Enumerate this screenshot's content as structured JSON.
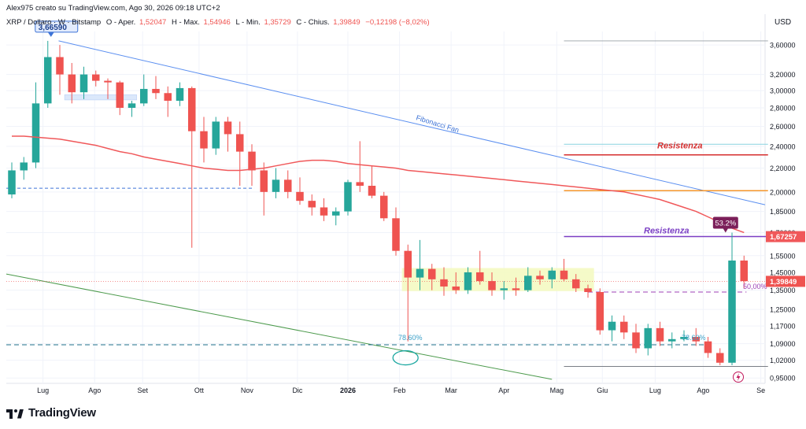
{
  "header": {
    "author_line": "Alex975 creato su TradingView.com, Ago 30, 2026 09:18 UTC+2",
    "symbol_line": "XRP / Dollaro · W · Bitstamp",
    "open_label": "O - Aper.",
    "open_value": "1,52047",
    "high_label": "H - Max.",
    "high_value": "1,54946",
    "low_label": "L - Min.",
    "low_value": "1,35729",
    "close_label": "C - Chius.",
    "close_value": "1,39849",
    "change_value": "−0,12198 (−8,02%)"
  },
  "footer": {
    "brand": "TradingView"
  },
  "colors": {
    "up": "#26a69a",
    "down": "#ef5350",
    "ma": "#f0585a",
    "grid": "#f0f3fa",
    "fib_fan": "#5b8ff0",
    "green_line": "#4c9a4c",
    "resistance_red": "#d62f2f",
    "resistance_purple": "#7b3fc4",
    "orange": "#f5962a",
    "range_box": "#f4f9c2"
  },
  "chart_data": {
    "type": "candlestick",
    "currency": "USD",
    "y_scale": "log",
    "ylim": [
      0.93,
      3.8
    ],
    "y_ticks": [
      "3,60000",
      "3,20000",
      "3,00000",
      "2,80000",
      "2,60000",
      "2,40000",
      "2,20000",
      "2,00000",
      "1,85000",
      "1,70000",
      "1,55000",
      "1,45000",
      "1,35000",
      "1,25000",
      "1,17000",
      "1,09000",
      "1,02000",
      "0,95000"
    ],
    "x_labels": [
      "Lug",
      "Ago",
      "Set",
      "Ott",
      "Nov",
      "Dic",
      "2026",
      "Feb",
      "Mar",
      "Apr",
      "Mag",
      "Giu",
      "Lug",
      "Ago",
      "Se"
    ],
    "candles": [
      {
        "o": 1.98,
        "h": 2.25,
        "l": 1.95,
        "c": 2.18
      },
      {
        "o": 2.18,
        "h": 2.3,
        "l": 2.1,
        "c": 2.25
      },
      {
        "o": 2.25,
        "h": 3.1,
        "l": 2.2,
        "c": 2.85
      },
      {
        "o": 2.85,
        "h": 3.66,
        "l": 2.8,
        "c": 3.43
      },
      {
        "o": 3.43,
        "h": 3.6,
        "l": 2.95,
        "c": 3.2
      },
      {
        "o": 3.2,
        "h": 3.35,
        "l": 2.85,
        "c": 2.98
      },
      {
        "o": 2.98,
        "h": 3.3,
        "l": 2.9,
        "c": 3.2
      },
      {
        "o": 3.2,
        "h": 3.25,
        "l": 3.05,
        "c": 3.12
      },
      {
        "o": 3.12,
        "h": 3.15,
        "l": 2.9,
        "c": 3.1
      },
      {
        "o": 3.1,
        "h": 3.12,
        "l": 2.72,
        "c": 2.8
      },
      {
        "o": 2.8,
        "h": 2.88,
        "l": 2.7,
        "c": 2.85
      },
      {
        "o": 2.85,
        "h": 3.2,
        "l": 2.82,
        "c": 3.02
      },
      {
        "o": 3.02,
        "h": 3.18,
        "l": 2.9,
        "c": 2.97
      },
      {
        "o": 2.97,
        "h": 3.05,
        "l": 2.7,
        "c": 2.88
      },
      {
        "o": 2.88,
        "h": 3.1,
        "l": 2.82,
        "c": 3.03
      },
      {
        "o": 3.03,
        "h": 3.05,
        "l": 1.6,
        "c": 2.55
      },
      {
        "o": 2.55,
        "h": 2.7,
        "l": 2.25,
        "c": 2.38
      },
      {
        "o": 2.38,
        "h": 2.7,
        "l": 2.32,
        "c": 2.65
      },
      {
        "o": 2.65,
        "h": 2.7,
        "l": 2.35,
        "c": 2.52
      },
      {
        "o": 2.52,
        "h": 2.65,
        "l": 2.05,
        "c": 2.35
      },
      {
        "o": 2.35,
        "h": 2.42,
        "l": 2.05,
        "c": 2.18
      },
      {
        "o": 2.18,
        "h": 2.25,
        "l": 1.82,
        "c": 2.0
      },
      {
        "o": 2.0,
        "h": 2.2,
        "l": 1.95,
        "c": 2.1
      },
      {
        "o": 2.1,
        "h": 2.18,
        "l": 1.95,
        "c": 2.0
      },
      {
        "o": 2.0,
        "h": 2.12,
        "l": 1.9,
        "c": 1.93
      },
      {
        "o": 1.93,
        "h": 1.98,
        "l": 1.82,
        "c": 1.88
      },
      {
        "o": 1.88,
        "h": 1.95,
        "l": 1.78,
        "c": 1.82
      },
      {
        "o": 1.82,
        "h": 1.88,
        "l": 1.75,
        "c": 1.85
      },
      {
        "o": 1.85,
        "h": 2.1,
        "l": 1.82,
        "c": 2.08
      },
      {
        "o": 2.08,
        "h": 2.45,
        "l": 2.0,
        "c": 2.05
      },
      {
        "o": 2.05,
        "h": 2.22,
        "l": 1.95,
        "c": 1.97
      },
      {
        "o": 1.97,
        "h": 2.0,
        "l": 1.78,
        "c": 1.8
      },
      {
        "o": 1.8,
        "h": 1.88,
        "l": 1.55,
        "c": 1.58
      },
      {
        "o": 1.58,
        "h": 1.62,
        "l": 1.1,
        "c": 1.42
      },
      {
        "o": 1.42,
        "h": 1.65,
        "l": 1.35,
        "c": 1.47
      },
      {
        "o": 1.47,
        "h": 1.5,
        "l": 1.35,
        "c": 1.41
      },
      {
        "o": 1.41,
        "h": 1.48,
        "l": 1.32,
        "c": 1.37
      },
      {
        "o": 1.37,
        "h": 1.45,
        "l": 1.33,
        "c": 1.35
      },
      {
        "o": 1.35,
        "h": 1.48,
        "l": 1.33,
        "c": 1.45
      },
      {
        "o": 1.45,
        "h": 1.58,
        "l": 1.38,
        "c": 1.4
      },
      {
        "o": 1.4,
        "h": 1.45,
        "l": 1.32,
        "c": 1.35
      },
      {
        "o": 1.35,
        "h": 1.4,
        "l": 1.3,
        "c": 1.36
      },
      {
        "o": 1.36,
        "h": 1.42,
        "l": 1.32,
        "c": 1.35
      },
      {
        "o": 1.35,
        "h": 1.48,
        "l": 1.34,
        "c": 1.43
      },
      {
        "o": 1.43,
        "h": 1.46,
        "l": 1.38,
        "c": 1.41
      },
      {
        "o": 1.41,
        "h": 1.48,
        "l": 1.36,
        "c": 1.46
      },
      {
        "o": 1.46,
        "h": 1.53,
        "l": 1.4,
        "c": 1.41
      },
      {
        "o": 1.41,
        "h": 1.44,
        "l": 1.34,
        "c": 1.36
      },
      {
        "o": 1.36,
        "h": 1.38,
        "l": 1.31,
        "c": 1.34
      },
      {
        "o": 1.34,
        "h": 1.36,
        "l": 1.13,
        "c": 1.15
      },
      {
        "o": 1.15,
        "h": 1.22,
        "l": 1.1,
        "c": 1.19
      },
      {
        "o": 1.19,
        "h": 1.22,
        "l": 1.11,
        "c": 1.14
      },
      {
        "o": 1.14,
        "h": 1.18,
        "l": 1.05,
        "c": 1.07
      },
      {
        "o": 1.07,
        "h": 1.18,
        "l": 1.04,
        "c": 1.16
      },
      {
        "o": 1.16,
        "h": 1.19,
        "l": 1.08,
        "c": 1.1
      },
      {
        "o": 1.1,
        "h": 1.14,
        "l": 1.07,
        "c": 1.11
      },
      {
        "o": 1.11,
        "h": 1.15,
        "l": 1.1,
        "c": 1.12
      },
      {
        "o": 1.12,
        "h": 1.16,
        "l": 1.08,
        "c": 1.1
      },
      {
        "o": 1.1,
        "h": 1.12,
        "l": 1.03,
        "c": 1.05
      },
      {
        "o": 1.05,
        "h": 1.07,
        "l": 1.0,
        "c": 1.01
      },
      {
        "o": 1.01,
        "h": 1.7,
        "l": 1.0,
        "c": 1.52
      },
      {
        "o": 1.52,
        "h": 1.55,
        "l": 1.36,
        "c": 1.4
      }
    ],
    "moving_average": [
      2.5,
      2.5,
      2.49,
      2.48,
      2.47,
      2.45,
      2.43,
      2.41,
      2.38,
      2.35,
      2.33,
      2.3,
      2.28,
      2.26,
      2.24,
      2.22,
      2.2,
      2.19,
      2.18,
      2.18,
      2.19,
      2.2,
      2.22,
      2.24,
      2.26,
      2.27,
      2.27,
      2.26,
      2.24,
      2.23,
      2.22,
      2.21,
      2.2,
      2.18,
      2.17,
      2.16,
      2.15,
      2.14,
      2.13,
      2.12,
      2.11,
      2.1,
      2.09,
      2.08,
      2.07,
      2.06,
      2.05,
      2.04,
      2.03,
      2.02,
      2.01,
      2.0,
      1.98,
      1.96,
      1.94,
      1.91,
      1.88,
      1.85,
      1.81,
      1.77,
      1.73,
      1.7
    ],
    "annotations": {
      "high_tag": "3,66590",
      "fib_fan_label": "Fibonacci Fan",
      "resistance_label": "Resistenza",
      "pct_label": "53.2%",
      "fib_786_left": "78.60%",
      "fib_786_right": "78.60%",
      "fib_50_right": "50,00%",
      "price_tag_upper": "1,67257",
      "price_tag_close": "1,39849"
    }
  }
}
